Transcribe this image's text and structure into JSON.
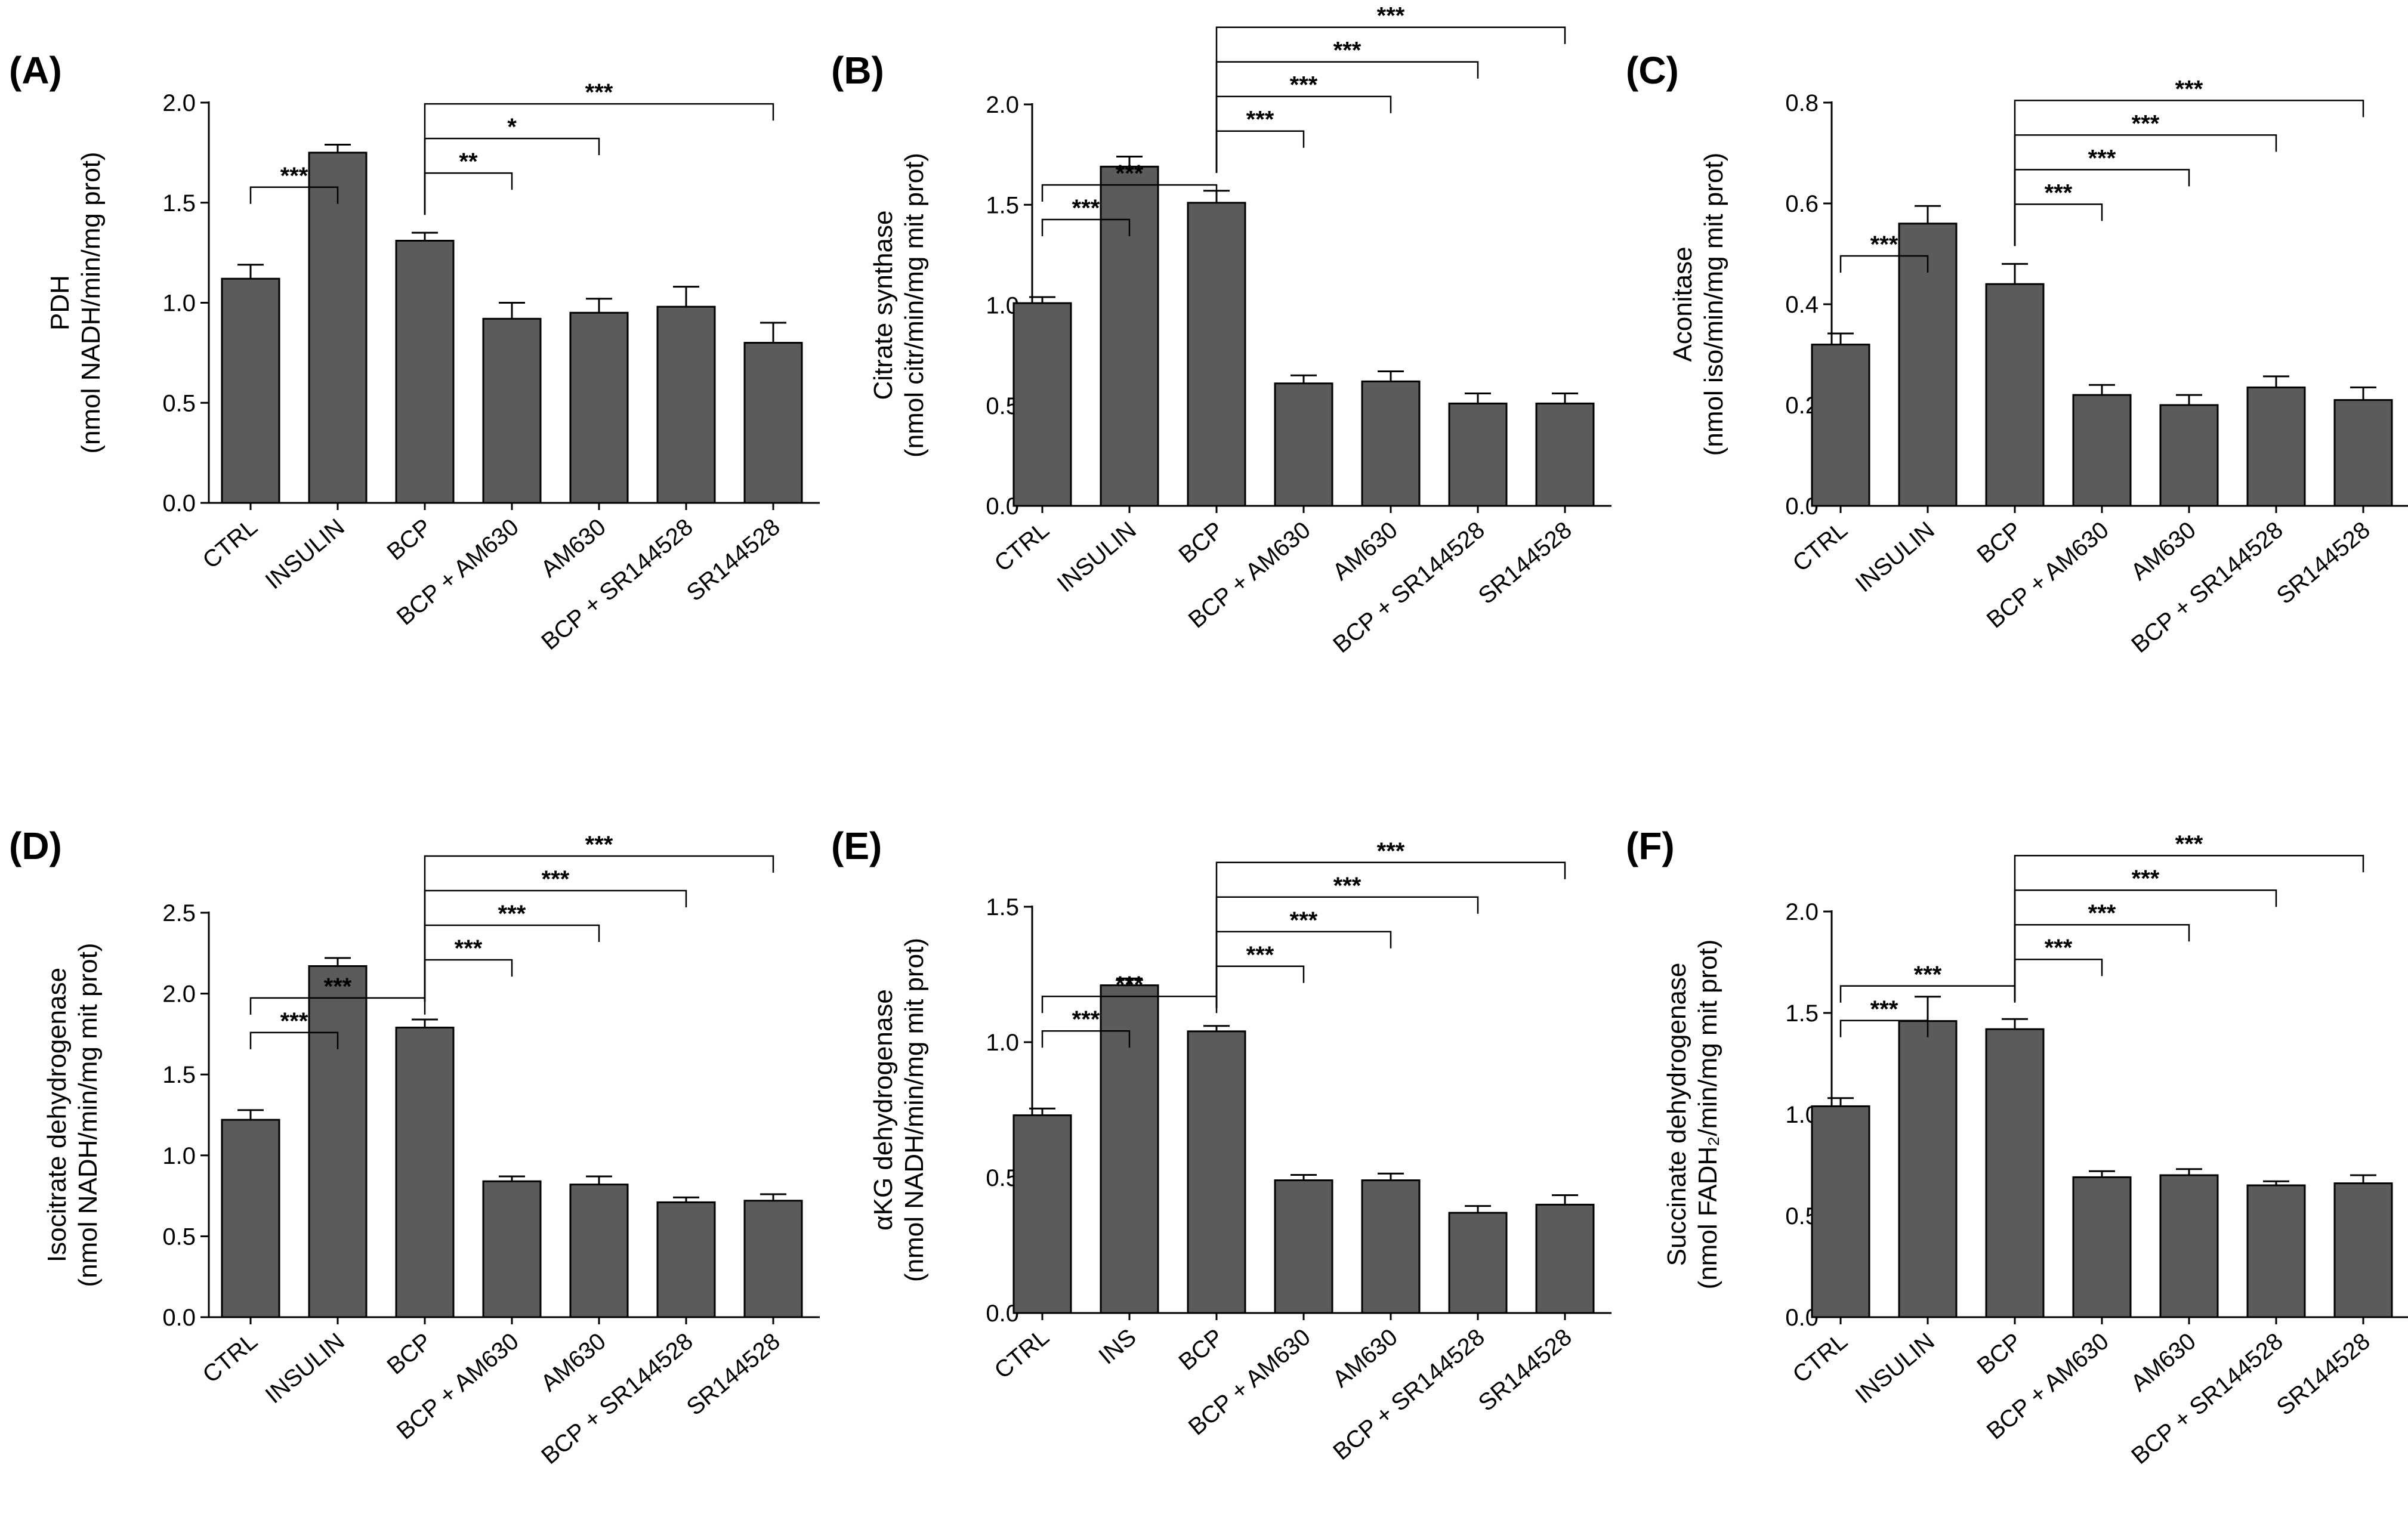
{
  "colors": {
    "bar": "#595b5d",
    "axis": "#000000",
    "background": "#ffffff"
  },
  "chart_data": [
    {
      "panel": "(A)",
      "type": "bar",
      "ylabel": [
        "PDH",
        "(nmol NADH/min/mg prot)"
      ],
      "categories": [
        "CTRL",
        "INSULIN",
        "BCP",
        "BCP + AM630",
        "AM630",
        "BCP + SR144528",
        "SR144528"
      ],
      "values": [
        1.12,
        1.75,
        1.31,
        0.92,
        0.95,
        0.98,
        0.8
      ],
      "errors": [
        0.07,
        0.04,
        0.04,
        0.08,
        0.07,
        0.1,
        0.1
      ],
      "ylim": [
        0,
        2.0
      ],
      "ticks": [
        "0.0",
        "0.5",
        "1.0",
        "1.5",
        "2.0"
      ],
      "significance": [
        {
          "from": 0,
          "to": 1,
          "label": "***",
          "level": 0,
          "type": "cup"
        },
        {
          "from": 2,
          "to": 3,
          "label": "**",
          "level": 0,
          "type": "cap"
        },
        {
          "from": 2,
          "to": 4,
          "label": "*",
          "level": 1,
          "type": "cap"
        },
        {
          "from": 2,
          "to": 6,
          "label": "***",
          "level": 2,
          "type": "cap"
        }
      ]
    },
    {
      "panel": "(B)",
      "type": "bar",
      "ylabel": [
        "Citrate synthase",
        "(nmol citr/min/mg mit prot)"
      ],
      "categories": [
        "CTRL",
        "INSULIN",
        "BCP",
        "BCP + AM630",
        "AM630",
        "BCP + SR144528",
        "SR144528"
      ],
      "values": [
        1.01,
        1.69,
        1.51,
        0.61,
        0.62,
        0.51,
        0.51
      ],
      "errors": [
        0.03,
        0.05,
        0.06,
        0.04,
        0.05,
        0.05,
        0.05
      ],
      "ylim": [
        0,
        2.0
      ],
      "ticks": [
        "0.0",
        "0.5",
        "1.0",
        "1.5",
        "2.0"
      ],
      "significance": [
        {
          "from": 0,
          "to": 1,
          "label": "***",
          "level": 0,
          "type": "cup"
        },
        {
          "from": 0,
          "to": 2,
          "label": "***",
          "level": 1,
          "type": "cup"
        },
        {
          "from": 2,
          "to": 3,
          "label": "***",
          "level": 0,
          "type": "cap"
        },
        {
          "from": 2,
          "to": 4,
          "label": "***",
          "level": 1,
          "type": "cap"
        },
        {
          "from": 2,
          "to": 5,
          "label": "***",
          "level": 2,
          "type": "cap"
        },
        {
          "from": 2,
          "to": 6,
          "label": "***",
          "level": 3,
          "type": "cap"
        }
      ]
    },
    {
      "panel": "(C)",
      "type": "bar",
      "ylabel": [
        "Aconitase",
        "(nmol iso/min/mg mit prot)"
      ],
      "categories": [
        "CTRL",
        "INSULIN",
        "BCP",
        "BCP + AM630",
        "AM630",
        "BCP + SR144528",
        "SR144528"
      ],
      "values": [
        0.32,
        0.56,
        0.44,
        0.22,
        0.2,
        0.235,
        0.21
      ],
      "errors": [
        0.022,
        0.035,
        0.04,
        0.02,
        0.02,
        0.022,
        0.025
      ],
      "ylim": [
        0,
        0.8
      ],
      "ticks": [
        "0.0",
        "0.2",
        "0.4",
        "0.6",
        "0.8"
      ],
      "significance": [
        {
          "from": 0,
          "to": 1,
          "label": "***",
          "level": 0,
          "type": "cup"
        },
        {
          "from": 2,
          "to": 3,
          "label": "***",
          "level": 0,
          "type": "cap"
        },
        {
          "from": 2,
          "to": 4,
          "label": "***",
          "level": 1,
          "type": "cap"
        },
        {
          "from": 2,
          "to": 5,
          "label": "***",
          "level": 2,
          "type": "cap"
        },
        {
          "from": 2,
          "to": 6,
          "label": "***",
          "level": 3,
          "type": "cap"
        }
      ]
    },
    {
      "panel": "(D)",
      "type": "bar",
      "ylabel": [
        "Isocitrate dehydrogenase",
        "(nmol NADH/min/mg mit prot)"
      ],
      "categories": [
        "CTRL",
        "INSULIN",
        "BCP",
        "BCP + AM630",
        "AM630",
        "BCP + SR144528",
        "SR144528"
      ],
      "values": [
        1.22,
        2.17,
        1.79,
        0.84,
        0.82,
        0.71,
        0.72
      ],
      "errors": [
        0.06,
        0.05,
        0.05,
        0.03,
        0.05,
        0.03,
        0.04
      ],
      "ylim": [
        0,
        2.5
      ],
      "ticks": [
        "0.0",
        "0.5",
        "1.0",
        "1.5",
        "2.0",
        "2.5"
      ],
      "significance": [
        {
          "from": 0,
          "to": 1,
          "label": "***",
          "level": 0,
          "type": "cup"
        },
        {
          "from": 0,
          "to": 2,
          "label": "***",
          "level": 1,
          "type": "cup"
        },
        {
          "from": 2,
          "to": 3,
          "label": "***",
          "level": 0,
          "type": "cap"
        },
        {
          "from": 2,
          "to": 4,
          "label": "***",
          "level": 1,
          "type": "cap"
        },
        {
          "from": 2,
          "to": 5,
          "label": "***",
          "level": 2,
          "type": "cap"
        },
        {
          "from": 2,
          "to": 6,
          "label": "***",
          "level": 3,
          "type": "cap"
        }
      ]
    },
    {
      "panel": "(E)",
      "type": "bar",
      "ylabel": [
        "αKG dehydrogenase",
        "(nmol NADH/min/mg mit prot)"
      ],
      "categories": [
        "CTRL",
        "INS",
        "BCP",
        "BCP + AM630",
        "AM630",
        "BCP + SR144528",
        "SR144528"
      ],
      "values": [
        0.73,
        1.21,
        1.04,
        0.49,
        0.49,
        0.37,
        0.4
      ],
      "errors": [
        0.025,
        0.025,
        0.02,
        0.02,
        0.025,
        0.025,
        0.035
      ],
      "ylim": [
        0,
        1.5
      ],
      "ticks": [
        "0.0",
        "0.5",
        "1.0",
        "1.5"
      ],
      "significance": [
        {
          "from": 0,
          "to": 1,
          "label": "***",
          "level": 0,
          "type": "cup"
        },
        {
          "from": 0,
          "to": 2,
          "label": "***",
          "level": 1,
          "type": "cup"
        },
        {
          "from": 2,
          "to": 3,
          "label": "***",
          "level": 0,
          "type": "cap"
        },
        {
          "from": 2,
          "to": 4,
          "label": "***",
          "level": 1,
          "type": "cap"
        },
        {
          "from": 2,
          "to": 5,
          "label": "***",
          "level": 2,
          "type": "cap"
        },
        {
          "from": 2,
          "to": 6,
          "label": "***",
          "level": 3,
          "type": "cap"
        }
      ]
    },
    {
      "panel": "(F)",
      "type": "bar",
      "ylabel": [
        "Succinate dehydrogenase",
        "(nmol FADH₂/min/mg mit prot)"
      ],
      "categories": [
        "CTRL",
        "INSULIN",
        "BCP",
        "BCP + AM630",
        "AM630",
        "BCP + SR144528",
        "SR144528"
      ],
      "values": [
        1.04,
        1.46,
        1.42,
        0.69,
        0.7,
        0.65,
        0.66
      ],
      "errors": [
        0.04,
        0.12,
        0.05,
        0.03,
        0.03,
        0.02,
        0.04
      ],
      "ylim": [
        0,
        2.0
      ],
      "ticks": [
        "0.0",
        "0.5",
        "1.0",
        "1.5",
        "2.0"
      ],
      "significance": [
        {
          "from": 0,
          "to": 1,
          "label": "***",
          "level": 0,
          "type": "cup"
        },
        {
          "from": 0,
          "to": 2,
          "label": "***",
          "level": 1,
          "type": "cup"
        },
        {
          "from": 2,
          "to": 3,
          "label": "***",
          "level": 0,
          "type": "cap"
        },
        {
          "from": 2,
          "to": 4,
          "label": "***",
          "level": 1,
          "type": "cap"
        },
        {
          "from": 2,
          "to": 5,
          "label": "***",
          "level": 2,
          "type": "cap"
        },
        {
          "from": 2,
          "to": 6,
          "label": "***",
          "level": 3,
          "type": "cap"
        }
      ]
    }
  ]
}
